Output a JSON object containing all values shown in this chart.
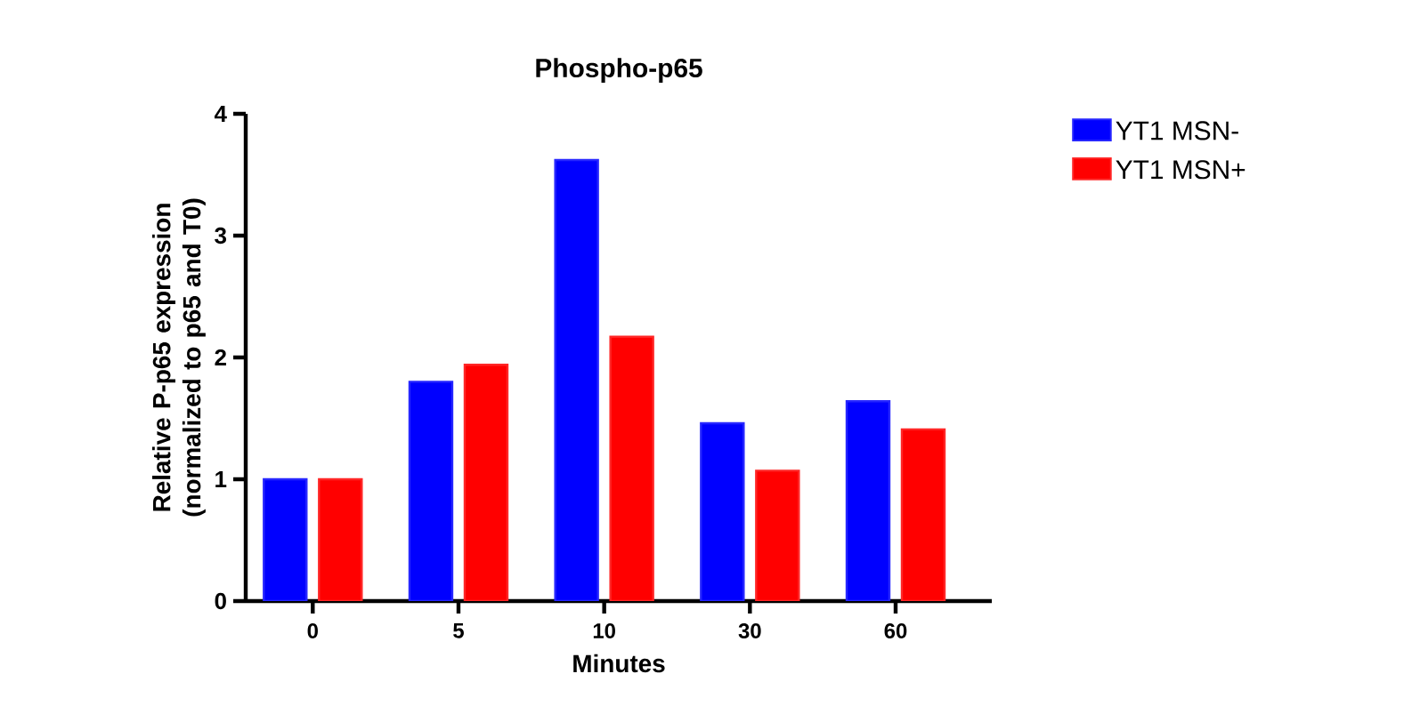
{
  "chart_data": {
    "type": "bar",
    "title": "Phospho-p65",
    "xlabel": "Minutes",
    "ylabel": "Relative P-p65 expression (normalized to p65 and T0)",
    "categories": [
      "0",
      "5",
      "10",
      "30",
      "60"
    ],
    "series": [
      {
        "name": "YT1 MSN-",
        "color": "#0000ff",
        "values": [
          1.0,
          1.8,
          3.62,
          1.46,
          1.64
        ]
      },
      {
        "name": "YT1 MSN+",
        "color": "#ff0000",
        "values": [
          1.0,
          1.94,
          2.17,
          1.07,
          1.41
        ]
      }
    ],
    "ylim": [
      0,
      4
    ],
    "yticks": [
      0,
      1,
      2,
      3,
      4
    ],
    "grid": false,
    "legend": "top right"
  }
}
